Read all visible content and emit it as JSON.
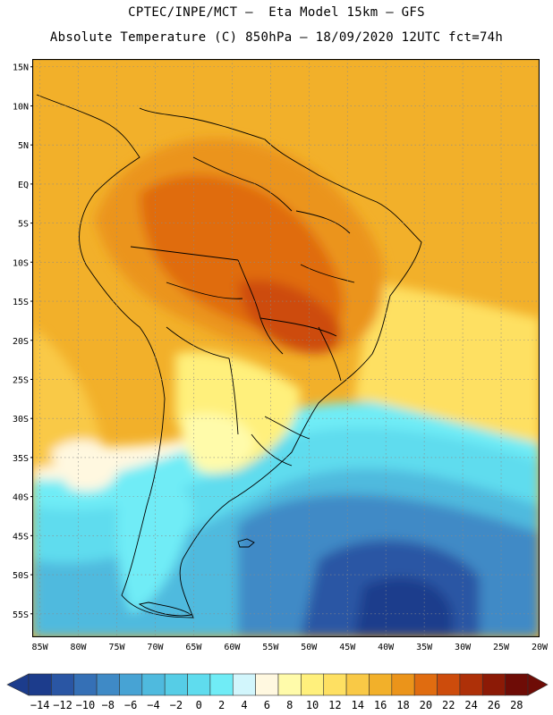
{
  "header": {
    "line1": "CPTEC/INPE/MCT –  Eta Model 15km – GFS",
    "line2": "Absolute Temperature (C) 850hPa – 18/09/2020 12UTC fct=74h"
  },
  "map": {
    "lat_labels": [
      "15N",
      "10N",
      "5N",
      "EQ",
      "5S",
      "10S",
      "15S",
      "20S",
      "25S",
      "30S",
      "35S",
      "40S",
      "45S",
      "50S",
      "55S"
    ],
    "lon_labels": [
      "85W",
      "80W",
      "75W",
      "70W",
      "65W",
      "60W",
      "55W",
      "50W",
      "45W",
      "40W",
      "35W",
      "30W",
      "25W",
      "20W"
    ],
    "lat_range": [
      -58,
      16
    ],
    "lon_range": [
      -86,
      -20
    ]
  },
  "colorbar": {
    "labels": [
      "-14",
      "-12",
      "-10",
      "-8",
      "-6",
      "-4",
      "-2",
      "0",
      "2",
      "4",
      "6",
      "8",
      "10",
      "12",
      "14",
      "16",
      "18",
      "20",
      "22",
      "24",
      "26",
      "28"
    ],
    "colors": [
      "#1c3c8c",
      "#2a56a4",
      "#3570b6",
      "#3f8ac6",
      "#47a3d4",
      "#4fbade",
      "#56cde6",
      "#5fdcee",
      "#70ecf6",
      "#d2f6fc",
      "#fff8e0",
      "#fffbaa",
      "#fff07c",
      "#fee062",
      "#f9c946",
      "#f2b02a",
      "#eb941a",
      "#e06c10",
      "#cd4c0c",
      "#ae3008",
      "#8c1a06",
      "#6e0c06"
    ]
  }
}
